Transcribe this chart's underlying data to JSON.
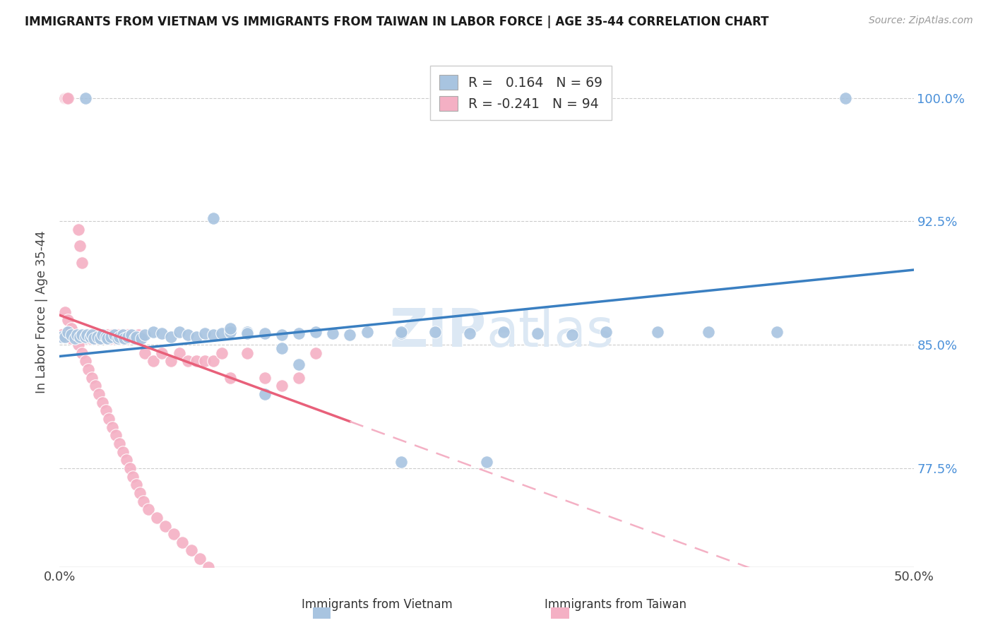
{
  "title": "IMMIGRANTS FROM VIETNAM VS IMMIGRANTS FROM TAIWAN IN LABOR FORCE | AGE 35-44 CORRELATION CHART",
  "source": "Source: ZipAtlas.com",
  "ylabel": "In Labor Force | Age 35-44",
  "xlim": [
    0.0,
    0.5
  ],
  "ylim": [
    0.715,
    1.025
  ],
  "yticks": [
    0.775,
    0.85,
    0.925,
    1.0
  ],
  "ytick_labels": [
    "77.5%",
    "85.0%",
    "92.5%",
    "100.0%"
  ],
  "xticks": [
    0.0,
    0.1,
    0.2,
    0.3,
    0.4,
    0.5
  ],
  "xtick_labels": [
    "0.0%",
    "",
    "",
    "",
    "",
    "50.0%"
  ],
  "legend_r_vietnam": "0.164",
  "legend_n_vietnam": "69",
  "legend_r_taiwan": "-0.241",
  "legend_n_taiwan": "94",
  "color_vietnam": "#a8c4e0",
  "color_taiwan": "#f4b0c4",
  "color_vietnam_line": "#3a7fc1",
  "color_taiwan_line": "#e8607a",
  "color_taiwan_line_dashed": "#f4b0c4",
  "vietnam_x": [
    0.001,
    0.003,
    0.005,
    0.007,
    0.009,
    0.01,
    0.012,
    0.013,
    0.015,
    0.016,
    0.018,
    0.019,
    0.02,
    0.022,
    0.024,
    0.025,
    0.027,
    0.028,
    0.03,
    0.032,
    0.034,
    0.035,
    0.037,
    0.038,
    0.04,
    0.042,
    0.044,
    0.045,
    0.048,
    0.05,
    0.055,
    0.06,
    0.065,
    0.07,
    0.075,
    0.08,
    0.085,
    0.09,
    0.095,
    0.1,
    0.11,
    0.12,
    0.13,
    0.14,
    0.15,
    0.16,
    0.17,
    0.18,
    0.2,
    0.22,
    0.24,
    0.26,
    0.28,
    0.3,
    0.32,
    0.35,
    0.09,
    0.1,
    0.11,
    0.12,
    0.13,
    0.14,
    0.2,
    0.38,
    0.42,
    0.2,
    0.25,
    0.46,
    0.015
  ],
  "vietnam_y": [
    0.855,
    0.855,
    0.858,
    0.856,
    0.854,
    0.856,
    0.855,
    0.856,
    0.855,
    0.856,
    0.855,
    0.856,
    0.854,
    0.855,
    0.854,
    0.856,
    0.855,
    0.854,
    0.855,
    0.856,
    0.854,
    0.855,
    0.856,
    0.854,
    0.855,
    0.856,
    0.854,
    0.855,
    0.854,
    0.856,
    0.858,
    0.857,
    0.855,
    0.858,
    0.856,
    0.855,
    0.857,
    0.856,
    0.857,
    0.858,
    0.858,
    0.857,
    0.856,
    0.857,
    0.858,
    0.857,
    0.856,
    0.858,
    0.857,
    0.858,
    0.857,
    0.858,
    0.857,
    0.856,
    0.858,
    0.858,
    0.927,
    0.86,
    0.857,
    0.82,
    0.848,
    0.838,
    0.858,
    0.858,
    0.858,
    0.779,
    0.779,
    1.0,
    1.0
  ],
  "taiwan_x": [
    0.001,
    0.002,
    0.003,
    0.004,
    0.005,
    0.006,
    0.007,
    0.008,
    0.009,
    0.01,
    0.011,
    0.012,
    0.013,
    0.014,
    0.015,
    0.016,
    0.017,
    0.018,
    0.019,
    0.02,
    0.021,
    0.022,
    0.023,
    0.024,
    0.025,
    0.026,
    0.027,
    0.028,
    0.029,
    0.03,
    0.031,
    0.032,
    0.033,
    0.034,
    0.035,
    0.036,
    0.037,
    0.038,
    0.039,
    0.04,
    0.042,
    0.044,
    0.046,
    0.048,
    0.05,
    0.055,
    0.06,
    0.065,
    0.07,
    0.075,
    0.08,
    0.085,
    0.09,
    0.095,
    0.1,
    0.11,
    0.12,
    0.13,
    0.14,
    0.15,
    0.003,
    0.005,
    0.007,
    0.009,
    0.011,
    0.013,
    0.015,
    0.017,
    0.019,
    0.021,
    0.023,
    0.025,
    0.027,
    0.029,
    0.031,
    0.033,
    0.035,
    0.037,
    0.039,
    0.041,
    0.043,
    0.045,
    0.047,
    0.049,
    0.052,
    0.057,
    0.062,
    0.067,
    0.072,
    0.077,
    0.082,
    0.087,
    0.092,
    0.01
  ],
  "taiwan_y": [
    0.856,
    0.855,
    1.0,
    1.0,
    1.0,
    0.855,
    0.854,
    0.856,
    0.855,
    0.856,
    0.92,
    0.91,
    0.9,
    0.855,
    0.854,
    0.856,
    0.855,
    0.854,
    0.856,
    0.855,
    0.854,
    0.856,
    0.855,
    0.854,
    0.856,
    0.855,
    0.854,
    0.856,
    0.855,
    0.854,
    0.856,
    0.855,
    0.854,
    0.856,
    0.855,
    0.854,
    0.856,
    0.855,
    0.854,
    0.856,
    0.855,
    0.854,
    0.856,
    0.855,
    0.845,
    0.84,
    0.845,
    0.84,
    0.845,
    0.84,
    0.84,
    0.84,
    0.84,
    0.845,
    0.83,
    0.845,
    0.83,
    0.825,
    0.83,
    0.845,
    0.87,
    0.865,
    0.86,
    0.855,
    0.85,
    0.845,
    0.84,
    0.835,
    0.83,
    0.825,
    0.82,
    0.815,
    0.81,
    0.805,
    0.8,
    0.795,
    0.79,
    0.785,
    0.78,
    0.775,
    0.77,
    0.765,
    0.76,
    0.755,
    0.75,
    0.745,
    0.74,
    0.735,
    0.73,
    0.725,
    0.72,
    0.715,
    0.71,
    0.855
  ]
}
